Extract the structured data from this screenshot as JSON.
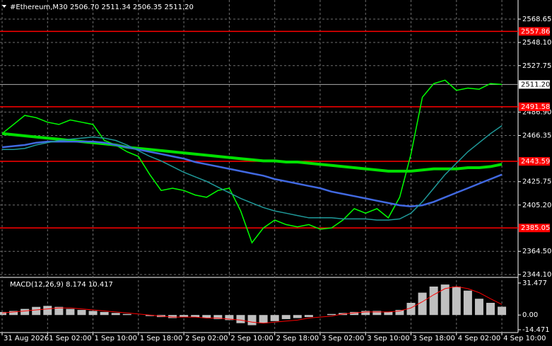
{
  "chart_data": {
    "type": "line",
    "title": "#Ethereum,M30  2506.70 2511.34 2506.35 2511.20",
    "categories": [
      "31 Aug 2026",
      null,
      null,
      null,
      "1 Sep 02:00",
      null,
      null,
      null,
      "1 Sep 10:00",
      null,
      null,
      null,
      "1 Sep 18:00",
      null,
      null,
      null,
      "2 Sep 02:00",
      null,
      null,
      null,
      "2 Sep 10:00",
      null,
      null,
      null,
      "2 Sep 18:00",
      null,
      null,
      null,
      "3 Sep 02:00",
      null,
      null,
      null,
      "3 Sep 10:00",
      null,
      null,
      null,
      "3 Sep 18:00",
      null,
      null,
      null,
      "4 Sep 02:00",
      null,
      null,
      null,
      "4 Sep 10:00"
    ],
    "series": [
      {
        "color": "#00ff00",
        "width": 1.5,
        "values": [
          2468,
          2476,
          2484,
          2482,
          2478,
          2476,
          2480,
          2478,
          2476,
          2462,
          2458,
          2452,
          2448,
          2432,
          2418,
          2420,
          2418,
          2414,
          2412,
          2418,
          2420,
          2400,
          2372,
          2385,
          2392,
          2388,
          2386,
          2388,
          2384,
          2385,
          2392,
          2402,
          2398,
          2402,
          2394,
          2412,
          2450,
          2500,
          2512,
          2515,
          2506,
          2508,
          2507,
          2512,
          2511.2
        ]
      },
      {
        "color": "#00e000",
        "width": 4,
        "values": [
          2468,
          2467,
          2466,
          2465,
          2464,
          2463,
          2462,
          2461,
          2460,
          2459,
          2458,
          2456,
          2455,
          2454,
          2453,
          2452,
          2451,
          2450,
          2449,
          2448,
          2447,
          2446,
          2445,
          2444,
          2444,
          2443,
          2443,
          2442,
          2441,
          2440,
          2439,
          2438,
          2437,
          2436,
          2435,
          2435,
          2435,
          2436,
          2437,
          2437,
          2437,
          2438,
          2438,
          2439,
          2441
        ]
      },
      {
        "color": "#4169e1",
        "width": 2.5,
        "values": [
          2456,
          2457,
          2458,
          2460,
          2461,
          2461,
          2461,
          2461,
          2461,
          2460,
          2458,
          2456,
          2454,
          2452,
          2450,
          2448,
          2446,
          2443,
          2441,
          2439,
          2437,
          2435,
          2433,
          2431,
          2428,
          2426,
          2424,
          2422,
          2420,
          2417,
          2415,
          2413,
          2411,
          2409,
          2407,
          2405,
          2404,
          2405,
          2408,
          2412,
          2416,
          2420,
          2424,
          2428,
          2432
        ]
      },
      {
        "color": "#1f9a9a",
        "width": 1.5,
        "values": [
          2454,
          2454,
          2455,
          2458,
          2460,
          2462,
          2463,
          2464,
          2465,
          2464,
          2462,
          2458,
          2453,
          2448,
          2444,
          2439,
          2434,
          2430,
          2426,
          2421,
          2416,
          2411,
          2407,
          2403,
          2400,
          2398,
          2396,
          2394,
          2394,
          2394,
          2393,
          2393,
          2393,
          2392,
          2392,
          2393,
          2398,
          2408,
          2420,
          2432,
          2442,
          2452,
          2460,
          2468,
          2475
        ]
      }
    ],
    "ylim": [
      2344.1,
      2568.65
    ],
    "yticks": [
      2568.65,
      {
        "value": 2548.1,
        "label": "2548.10"
      },
      2527.75,
      {
        "value": 2486.9,
        "label": "2486.90"
      },
      2466.35,
      2425.75,
      {
        "value": 2405.2,
        "label": "2405.20"
      },
      {
        "value": 2364.5,
        "label": "2364.50"
      },
      {
        "value": 2344.1,
        "label": "2344.10"
      }
    ],
    "grid": true,
    "levels": [
      2557.86,
      2491.58,
      2443.59,
      2385.05
    ],
    "level_color": "#ff0000",
    "last": {
      "value": 2511.2,
      "label": "2511.20"
    },
    "macd": {
      "title": "MACD(12,26,9) 8.174 10.417",
      "histogram": [
        3,
        4,
        6,
        8,
        9,
        8,
        6,
        5,
        4,
        3,
        2,
        1,
        0,
        -1,
        -2,
        -3,
        -2,
        -2,
        -3,
        -4,
        -5,
        -8,
        -10,
        -8,
        -6,
        -4,
        -3,
        -2,
        0,
        1,
        2,
        3,
        4,
        4,
        3,
        5,
        12,
        22,
        28,
        30,
        28,
        24,
        16,
        12,
        8.174
      ],
      "histogram_color": "#c0c0c0",
      "signal": [
        2,
        3,
        4,
        5,
        6,
        7,
        7,
        6,
        5,
        4,
        3,
        2,
        1,
        0,
        -1,
        -2,
        -2,
        -2,
        -3,
        -3,
        -4,
        -5,
        -7,
        -8,
        -7,
        -6,
        -5,
        -3,
        -2,
        -1,
        1,
        2,
        3,
        3,
        3,
        4,
        7,
        13,
        20,
        26,
        28,
        26,
        22,
        16,
        10.417
      ],
      "signal_color": "#ff0000",
      "ylim": [
        -14.471,
        31.477
      ],
      "yticks": [
        31.477,
        {
          "value": 0,
          "label": "0.00"
        },
        -14.471
      ]
    }
  }
}
